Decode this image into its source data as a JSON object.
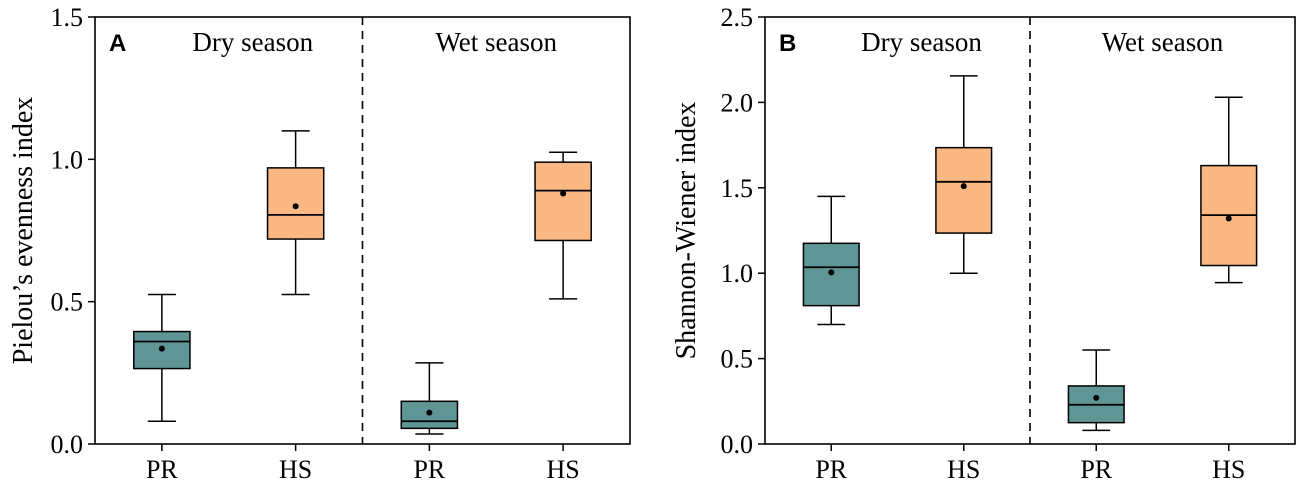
{
  "chart_data": [
    {
      "type": "box",
      "panel_label": "A",
      "ylabel": "Pielou’s evenness index",
      "ylim": [
        0.0,
        1.5
      ],
      "yticks": [
        0.0,
        0.5,
        1.0,
        1.5
      ],
      "ytick_labels": [
        "0.0",
        "0.5",
        "1.0",
        "1.5"
      ],
      "categories": [
        "PR",
        "HS",
        "PR",
        "HS"
      ],
      "groups": [
        "Dry season",
        "Wet season"
      ],
      "boxes": [
        {
          "group": "Dry season",
          "category": "PR",
          "whisker_low": 0.08,
          "q1": 0.265,
          "median": 0.36,
          "q3": 0.395,
          "whisker_high": 0.525,
          "mean": 0.335,
          "color": "#5f9595"
        },
        {
          "group": "Dry season",
          "category": "HS",
          "whisker_low": 0.525,
          "q1": 0.72,
          "median": 0.805,
          "q3": 0.97,
          "whisker_high": 1.1,
          "mean": 0.835,
          "color": "#fbb882"
        },
        {
          "group": "Wet season",
          "category": "PR",
          "whisker_low": 0.035,
          "q1": 0.055,
          "median": 0.08,
          "q3": 0.15,
          "whisker_high": 0.285,
          "mean": 0.11,
          "color": "#5f9595"
        },
        {
          "group": "Wet season",
          "category": "HS",
          "whisker_low": 0.51,
          "q1": 0.715,
          "median": 0.89,
          "q3": 0.99,
          "whisker_high": 1.025,
          "mean": 0.88,
          "color": "#fbb882"
        }
      ]
    },
    {
      "type": "box",
      "panel_label": "B",
      "ylabel": "Shannon-Wiener index",
      "ylim": [
        0.0,
        2.5
      ],
      "yticks": [
        0.0,
        0.5,
        1.0,
        1.5,
        2.0,
        2.5
      ],
      "ytick_labels": [
        "0.0",
        "0.5",
        "1.0",
        "1.5",
        "2.0",
        "2.5"
      ],
      "categories": [
        "PR",
        "HS",
        "PR",
        "HS"
      ],
      "groups": [
        "Dry season",
        "Wet season"
      ],
      "boxes": [
        {
          "group": "Dry season",
          "category": "PR",
          "whisker_low": 0.7,
          "q1": 0.81,
          "median": 1.035,
          "q3": 1.175,
          "whisker_high": 1.45,
          "mean": 1.005,
          "color": "#5f9595"
        },
        {
          "group": "Dry season",
          "category": "HS",
          "whisker_low": 1.0,
          "q1": 1.235,
          "median": 1.535,
          "q3": 1.735,
          "whisker_high": 2.155,
          "mean": 1.51,
          "color": "#fbb882"
        },
        {
          "group": "Wet season",
          "category": "PR",
          "whisker_low": 0.08,
          "q1": 0.125,
          "median": 0.23,
          "q3": 0.34,
          "whisker_high": 0.55,
          "mean": 0.27,
          "color": "#5f9595"
        },
        {
          "group": "Wet season",
          "category": "HS",
          "whisker_low": 0.945,
          "q1": 1.045,
          "median": 1.34,
          "q3": 1.63,
          "whisker_high": 2.03,
          "mean": 1.32,
          "color": "#fbb882"
        }
      ]
    }
  ]
}
